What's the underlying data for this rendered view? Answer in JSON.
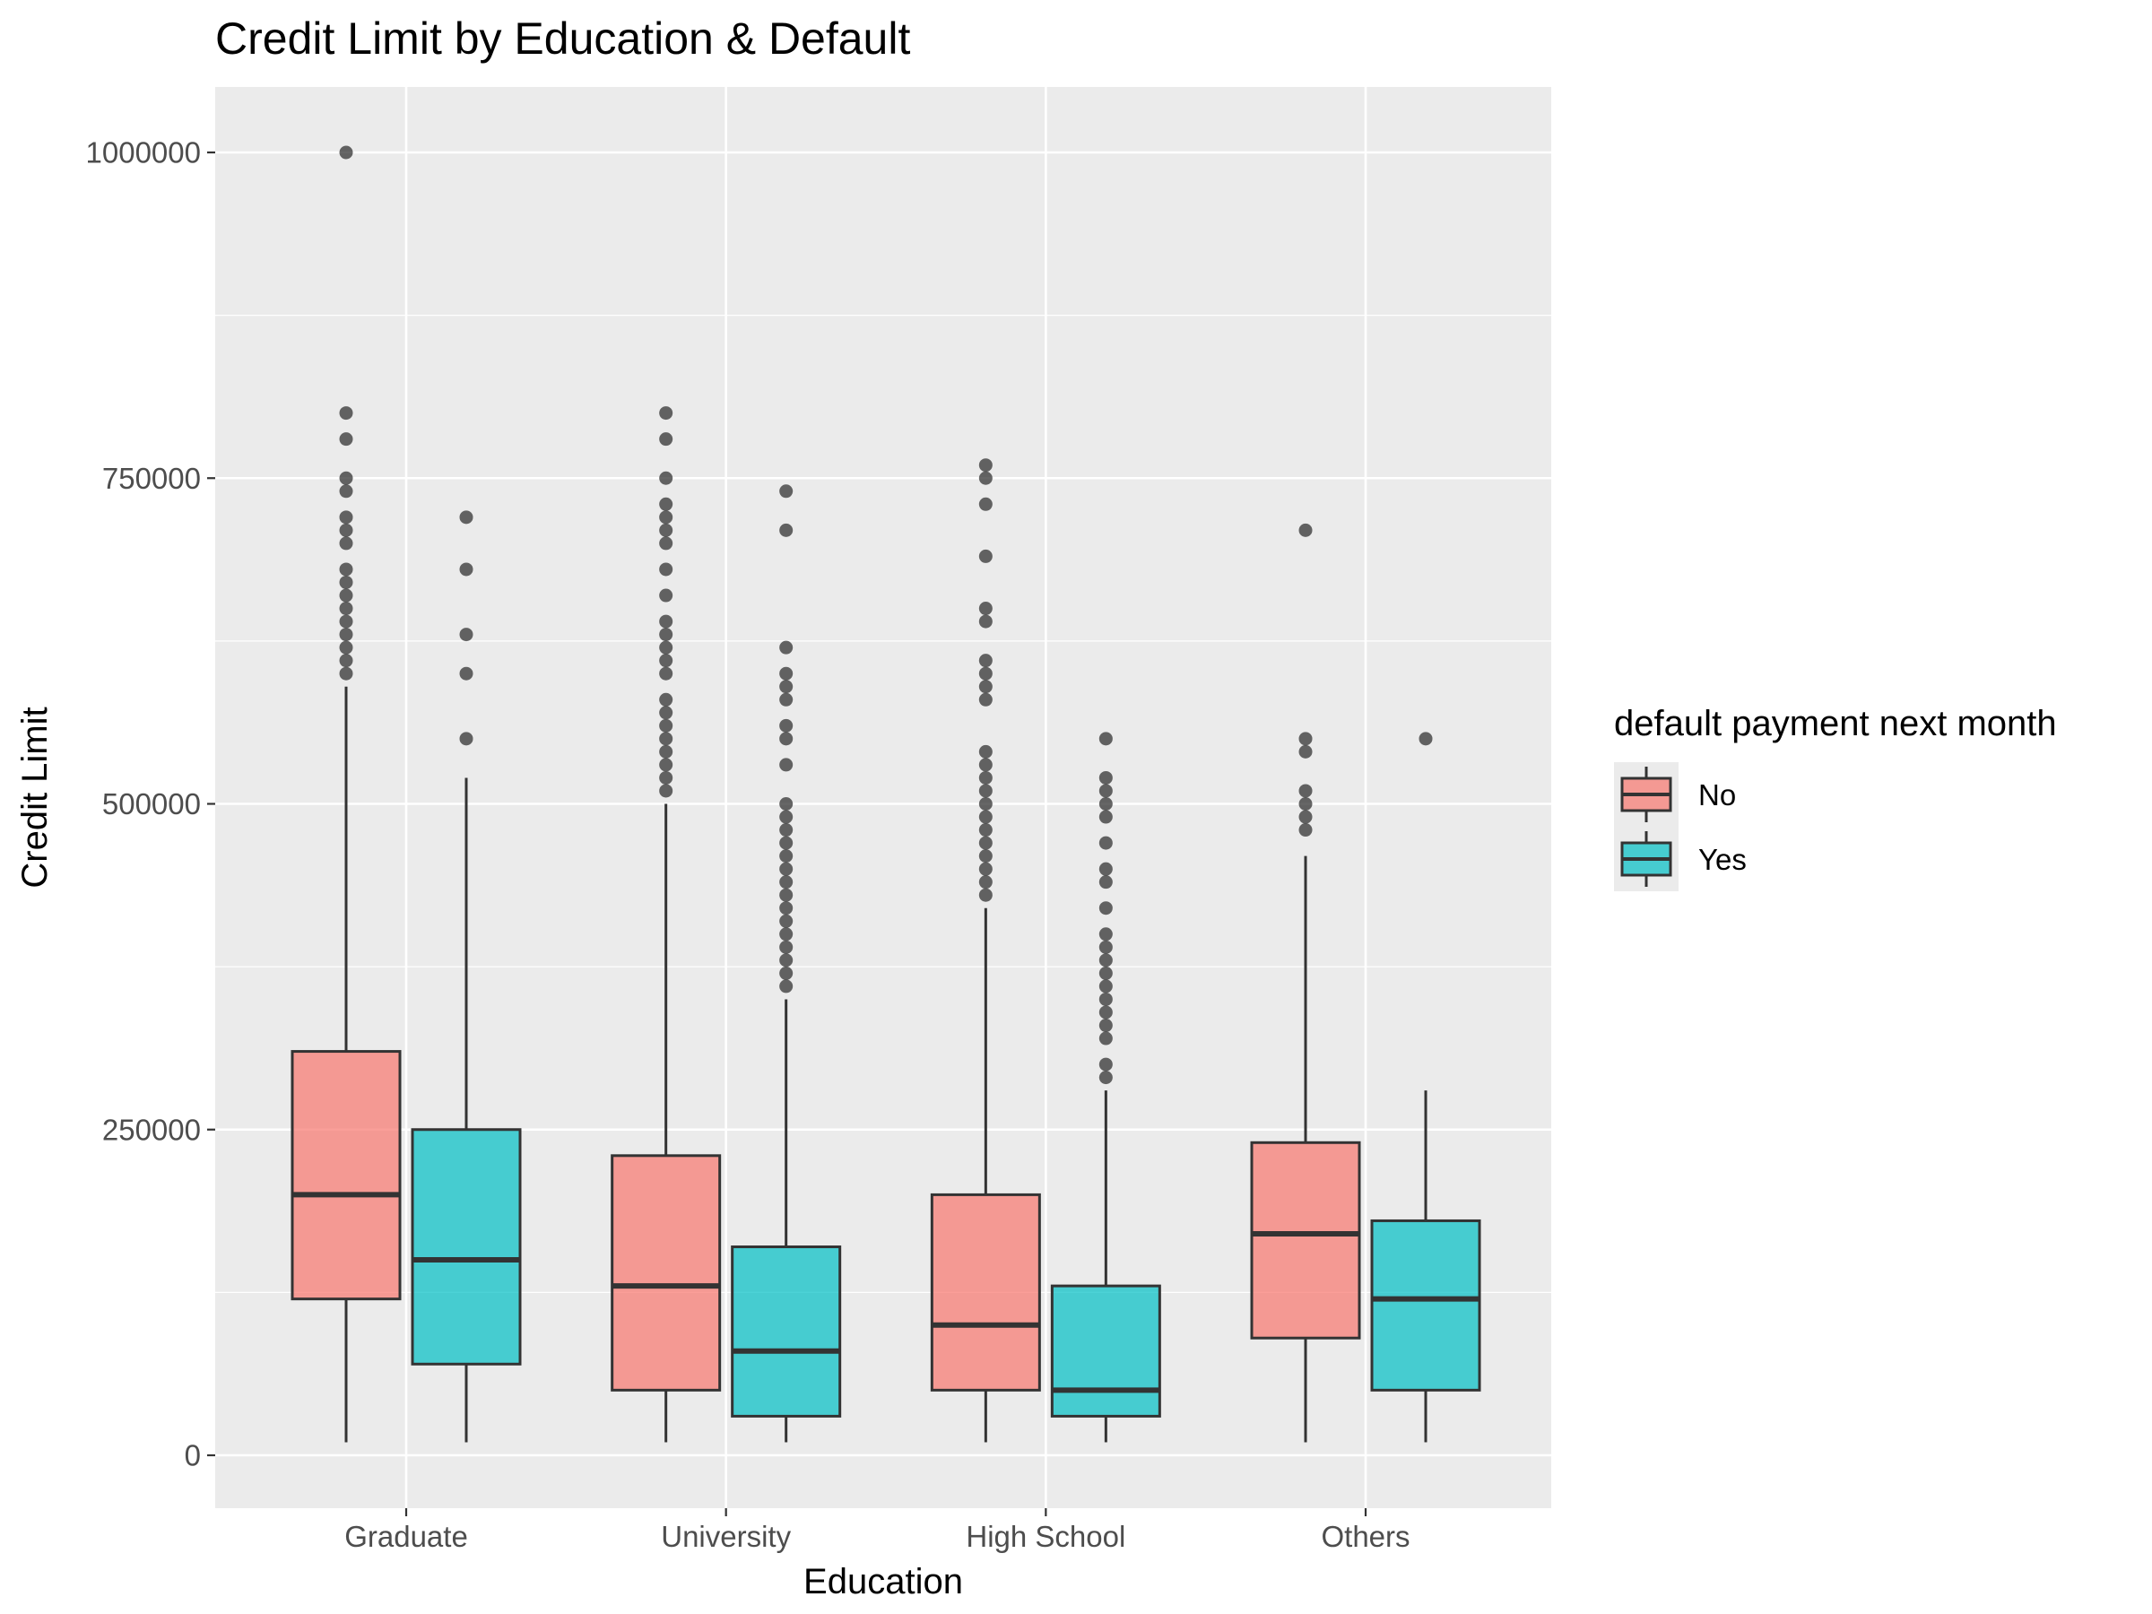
{
  "chart_data": {
    "type": "boxplot",
    "title": "Credit Limit by Education & Default",
    "xlabel": "Education",
    "ylabel": "Credit Limit",
    "categories": [
      "Graduate",
      "University",
      "High School",
      "Others"
    ],
    "y_ticks": [
      0,
      250000,
      500000,
      750000,
      1000000
    ],
    "y_tick_labels": [
      "0",
      "250000",
      "500000",
      "750000",
      "1000000"
    ],
    "ylim": [
      -40000,
      1050000
    ],
    "grid": true,
    "legend": {
      "title": "default payment next month",
      "placement": "right",
      "entries": [
        "No",
        "Yes"
      ]
    },
    "series": [
      {
        "name": "No",
        "color": "#F8766D",
        "boxes": [
          {
            "category": "Graduate",
            "whisker_low": 10000,
            "q1": 120000,
            "median": 200000,
            "q3": 310000,
            "whisker_high": 590000,
            "outliers": [
              600000,
              610000,
              620000,
              630000,
              640000,
              650000,
              660000,
              670000,
              680000,
              700000,
              710000,
              720000,
              740000,
              750000,
              780000,
              800000,
              1000000
            ]
          },
          {
            "category": "University",
            "whisker_low": 10000,
            "q1": 50000,
            "median": 130000,
            "q3": 230000,
            "whisker_high": 500000,
            "outliers": [
              510000,
              520000,
              530000,
              540000,
              550000,
              560000,
              570000,
              580000,
              600000,
              610000,
              620000,
              630000,
              640000,
              660000,
              680000,
              700000,
              710000,
              720000,
              730000,
              750000,
              780000,
              800000
            ]
          },
          {
            "category": "High School",
            "whisker_low": 10000,
            "q1": 50000,
            "median": 100000,
            "q3": 200000,
            "whisker_high": 420000,
            "outliers": [
              430000,
              440000,
              450000,
              460000,
              470000,
              480000,
              490000,
              500000,
              510000,
              520000,
              530000,
              540000,
              580000,
              590000,
              600000,
              610000,
              640000,
              650000,
              690000,
              730000,
              750000,
              760000
            ]
          },
          {
            "category": "Others",
            "whisker_low": 10000,
            "q1": 90000,
            "median": 170000,
            "q3": 240000,
            "whisker_high": 460000,
            "outliers": [
              480000,
              490000,
              500000,
              510000,
              540000,
              550000,
              710000
            ]
          }
        ]
      },
      {
        "name": "Yes",
        "color": "#00BFC4",
        "boxes": [
          {
            "category": "Graduate",
            "whisker_low": 10000,
            "q1": 70000,
            "median": 150000,
            "q3": 250000,
            "whisker_high": 520000,
            "outliers": [
              550000,
              600000,
              630000,
              680000,
              720000
            ]
          },
          {
            "category": "University",
            "whisker_low": 10000,
            "q1": 30000,
            "median": 80000,
            "q3": 160000,
            "whisker_high": 350000,
            "outliers": [
              360000,
              370000,
              380000,
              390000,
              400000,
              410000,
              420000,
              430000,
              440000,
              450000,
              460000,
              470000,
              480000,
              490000,
              500000,
              530000,
              550000,
              560000,
              580000,
              590000,
              600000,
              620000,
              710000,
              740000
            ]
          },
          {
            "category": "High School",
            "whisker_low": 10000,
            "q1": 30000,
            "median": 50000,
            "q3": 130000,
            "whisker_high": 280000,
            "outliers": [
              290000,
              300000,
              320000,
              330000,
              340000,
              350000,
              360000,
              370000,
              380000,
              390000,
              400000,
              420000,
              440000,
              450000,
              470000,
              490000,
              500000,
              510000,
              520000,
              550000
            ]
          },
          {
            "category": "Others",
            "whisker_low": 10000,
            "q1": 50000,
            "median": 120000,
            "q3": 180000,
            "whisker_high": 280000,
            "outliers": [
              550000
            ]
          }
        ]
      }
    ]
  }
}
